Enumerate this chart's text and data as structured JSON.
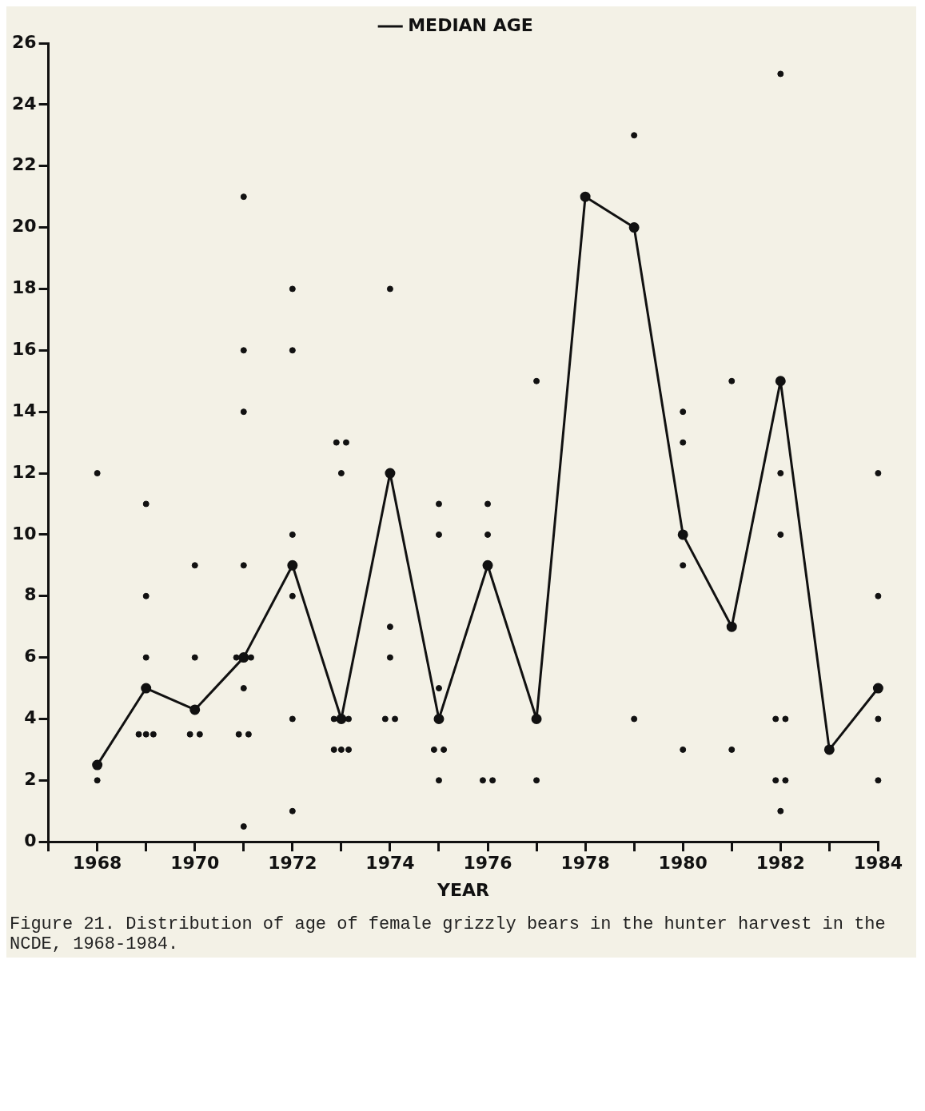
{
  "chart_data": {
    "type": "scatter",
    "xlabel": "YEAR",
    "legend": "top",
    "marker": "circle",
    "line_style": "solid",
    "grid": false,
    "xlim": [
      1967,
      1984
    ],
    "xticks": [
      {
        "value": 1967,
        "label": null
      },
      1968,
      {
        "value": 1969,
        "label": null
      },
      1970,
      {
        "value": 1971,
        "label": null
      },
      1972,
      {
        "value": 1973,
        "label": null
      },
      1974,
      {
        "value": 1975,
        "label": null
      },
      1976,
      {
        "value": 1977,
        "label": null
      },
      1978,
      {
        "value": 1979,
        "label": null
      },
      1980,
      {
        "value": 1981,
        "label": null
      },
      1982,
      {
        "value": 1983,
        "label": null
      },
      1984
    ],
    "ylim": [
      0,
      26
    ],
    "yticks": [
      0,
      2,
      4,
      6,
      8,
      10,
      12,
      14,
      16,
      18,
      20,
      22,
      24,
      26
    ],
    "series": [
      {
        "type": "scatter",
        "color": "#111111",
        "x": [
          1968,
          1968,
          1969,
          1969,
          1969,
          1968.85,
          1969,
          1969.15,
          1970,
          1970,
          1969.9,
          1970.1,
          1971,
          1971,
          1971,
          1971,
          1970.85,
          1971.15,
          1971,
          1970.9,
          1971.1,
          1971,
          1972,
          1972,
          1972,
          1972,
          1972,
          1972,
          1972.9,
          1973.1,
          1973,
          1972.85,
          1973.15,
          1972.85,
          1973,
          1973.15,
          1974,
          1974,
          1974,
          1973.9,
          1974.1,
          1975,
          1975,
          1975,
          1974.9,
          1975.1,
          1975,
          1976,
          1976,
          1975.9,
          1976.1,
          1977,
          1977,
          1979,
          1979,
          1980,
          1980,
          1980,
          1980,
          1981,
          1981,
          1982,
          1982,
          1982,
          1981.9,
          1982.1,
          1981.9,
          1982.1,
          1982,
          1984,
          1984,
          1984,
          1984
        ],
        "values": [
          2,
          12,
          11,
          8,
          6,
          3.5,
          3.5,
          3.5,
          9,
          6,
          3.5,
          3.5,
          21,
          16,
          14,
          9,
          6,
          6,
          5,
          3.5,
          3.5,
          0.5,
          18,
          16,
          10,
          8,
          4,
          1,
          13,
          13,
          12,
          4,
          4,
          3,
          3,
          3,
          18,
          7,
          6,
          4,
          4,
          11,
          10,
          5,
          3,
          3,
          2,
          11,
          10,
          2,
          2,
          15,
          2,
          23,
          4,
          14,
          13,
          9,
          3,
          15,
          3,
          25,
          12,
          10,
          4,
          4,
          2,
          2,
          1,
          12,
          8,
          4,
          2
        ]
      },
      {
        "type": "line",
        "name": "MEDIAN AGE",
        "color": "#111111",
        "x": [
          1968,
          1969,
          1970,
          1971,
          1972,
          1973,
          1974,
          1975,
          1976,
          1977,
          1978,
          1979,
          1980,
          1981,
          1982,
          1983,
          1984
        ],
        "values": [
          2.5,
          5,
          4.3,
          6,
          9,
          4,
          12,
          4,
          9,
          4,
          21,
          20,
          10,
          7,
          15,
          3,
          5
        ]
      }
    ],
    "annotations": [
      "Figure 21. Distribution of age of female grizzly bears in the hunter harvest in the NCDE, 1968-1984."
    ]
  }
}
